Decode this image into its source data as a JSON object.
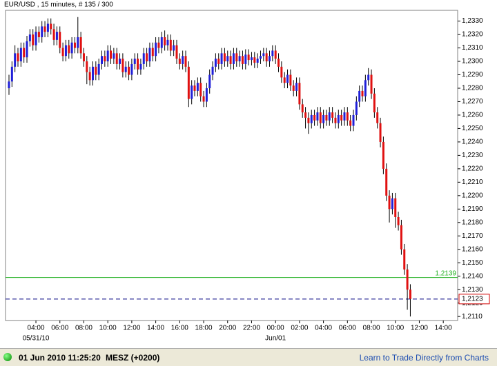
{
  "chart_data": {
    "type": "candlestick",
    "title": "EUR/USD , 15 minutes, # 135 / 300",
    "up_color": "#1f1fd8",
    "down_color": "#e01010",
    "wick_color": "#000000",
    "ylim": [
      1.2107,
      1.2338
    ],
    "xlim": [
      -1.15,
      149.8
    ],
    "yticks": [
      {
        "value": 1.211,
        "label": "1,2110"
      },
      {
        "value": 1.212,
        "label": "1,2120"
      },
      {
        "value": 1.213,
        "label": "1,2130"
      },
      {
        "value": 1.214,
        "label": "1,2140"
      },
      {
        "value": 1.215,
        "label": "1,2150"
      },
      {
        "value": 1.216,
        "label": "1,2160"
      },
      {
        "value": 1.217,
        "label": "1,2170"
      },
      {
        "value": 1.218,
        "label": "1,2180"
      },
      {
        "value": 1.219,
        "label": "1,2190"
      },
      {
        "value": 1.22,
        "label": "1,2200"
      },
      {
        "value": 1.221,
        "label": "1,2210"
      },
      {
        "value": 1.222,
        "label": "1,2220"
      },
      {
        "value": 1.223,
        "label": "1,2230"
      },
      {
        "value": 1.224,
        "label": "1,2240"
      },
      {
        "value": 1.225,
        "label": "1,2250"
      },
      {
        "value": 1.226,
        "label": "1,2260"
      },
      {
        "value": 1.227,
        "label": "1,2270"
      },
      {
        "value": 1.228,
        "label": "1,2280"
      },
      {
        "value": 1.229,
        "label": "1,2290"
      },
      {
        "value": 1.23,
        "label": "1,2300"
      },
      {
        "value": 1.231,
        "label": "1,2310"
      },
      {
        "value": 1.232,
        "label": "1,2320"
      },
      {
        "value": 1.233,
        "label": "1,2330"
      }
    ],
    "xticks": [
      {
        "value": 9,
        "label": "04:00"
      },
      {
        "value": 17,
        "label": "06:00"
      },
      {
        "value": 25,
        "label": "08:00"
      },
      {
        "value": 33,
        "label": "10:00"
      },
      {
        "value": 41,
        "label": "12:00"
      },
      {
        "value": 49,
        "label": "14:00"
      },
      {
        "value": 57,
        "label": "16:00"
      },
      {
        "value": 65,
        "label": "18:00"
      },
      {
        "value": 73,
        "label": "20:00"
      },
      {
        "value": 81,
        "label": "22:00"
      },
      {
        "value": 89,
        "label": "00:00"
      },
      {
        "value": 97,
        "label": "02:00"
      },
      {
        "value": 105,
        "label": "04:00"
      },
      {
        "value": 113,
        "label": "06:00"
      },
      {
        "value": 121,
        "label": "08:00"
      },
      {
        "value": 129,
        "label": "10:00"
      },
      {
        "value": 137,
        "label": "12:00"
      },
      {
        "value": 145,
        "label": "14:00"
      }
    ],
    "date_labels": [
      {
        "value": 9,
        "label": "05/31/10"
      },
      {
        "value": 89,
        "label": "Jun/01"
      }
    ],
    "lines": [
      {
        "value": 1.2139,
        "label": "1,2139",
        "color": "#22b022",
        "style": "solid"
      },
      {
        "value": 1.2123,
        "label": "1,2123",
        "color": "#000080",
        "style": "dashed"
      }
    ],
    "ohlc": [
      [
        1.228,
        1.229,
        1.2275,
        1.2285
      ],
      [
        1.2285,
        1.23,
        1.2281,
        1.2296
      ],
      [
        1.2296,
        1.2312,
        1.2292,
        1.2306
      ],
      [
        1.2306,
        1.231,
        1.2296,
        1.23
      ],
      [
        1.23,
        1.2314,
        1.2296,
        1.231
      ],
      [
        1.231,
        1.2314,
        1.2299,
        1.2303
      ],
      [
        1.2303,
        1.2319,
        1.2299,
        1.2315
      ],
      [
        1.2315,
        1.2324,
        1.2311,
        1.232
      ],
      [
        1.232,
        1.2324,
        1.2308,
        1.2312
      ],
      [
        1.2312,
        1.2326,
        1.2308,
        1.2322
      ],
      [
        1.2322,
        1.2326,
        1.2314,
        1.2318
      ],
      [
        1.2318,
        1.233,
        1.2314,
        1.2326
      ],
      [
        1.2326,
        1.233,
        1.2318,
        1.2322
      ],
      [
        1.2322,
        1.2332,
        1.2318,
        1.2328
      ],
      [
        1.2328,
        1.2332,
        1.232,
        1.2324
      ],
      [
        1.2324,
        1.2328,
        1.2312,
        1.2316
      ],
      [
        1.2316,
        1.2326,
        1.2312,
        1.2322
      ],
      [
        1.2322,
        1.2326,
        1.2306,
        1.231
      ],
      [
        1.231,
        1.2314,
        1.23,
        1.2304
      ],
      [
        1.2304,
        1.2316,
        1.23,
        1.2312
      ],
      [
        1.2312,
        1.2316,
        1.2302,
        1.2306
      ],
      [
        1.2306,
        1.2318,
        1.2302,
        1.2314
      ],
      [
        1.2314,
        1.2318,
        1.2306,
        1.231
      ],
      [
        1.231,
        1.2333,
        1.2306,
        1.2318
      ],
      [
        1.2318,
        1.2322,
        1.2302,
        1.2306
      ],
      [
        1.2306,
        1.231,
        1.2296,
        1.23
      ],
      [
        1.23,
        1.2304,
        1.2283,
        1.2292
      ],
      [
        1.2292,
        1.2296,
        1.2282,
        1.2286
      ],
      [
        1.2286,
        1.23,
        1.2282,
        1.2296
      ],
      [
        1.2296,
        1.23,
        1.2286,
        1.229
      ],
      [
        1.229,
        1.2302,
        1.2286,
        1.2298
      ],
      [
        1.2298,
        1.2308,
        1.2294,
        1.2304
      ],
      [
        1.2304,
        1.2308,
        1.2296,
        1.23
      ],
      [
        1.23,
        1.2312,
        1.2296,
        1.2308
      ],
      [
        1.2308,
        1.2312,
        1.2298,
        1.2302
      ],
      [
        1.2302,
        1.231,
        1.2298,
        1.2306
      ],
      [
        1.2306,
        1.231,
        1.2294,
        1.2298
      ],
      [
        1.2298,
        1.2306,
        1.2294,
        1.2302
      ],
      [
        1.2302,
        1.2306,
        1.2288,
        1.2292
      ],
      [
        1.2292,
        1.23,
        1.2288,
        1.2296
      ],
      [
        1.2296,
        1.23,
        1.2286,
        1.229
      ],
      [
        1.229,
        1.2302,
        1.2286,
        1.2298
      ],
      [
        1.2298,
        1.2306,
        1.2294,
        1.2302
      ],
      [
        1.2302,
        1.2306,
        1.229,
        1.2294
      ],
      [
        1.2294,
        1.2302,
        1.229,
        1.2298
      ],
      [
        1.2298,
        1.231,
        1.2294,
        1.2306
      ],
      [
        1.2306,
        1.231,
        1.2296,
        1.23
      ],
      [
        1.23,
        1.2314,
        1.2296,
        1.231
      ],
      [
        1.231,
        1.2314,
        1.23,
        1.2304
      ],
      [
        1.2304,
        1.2318,
        1.23,
        1.2314
      ],
      [
        1.2314,
        1.2318,
        1.2306,
        1.231
      ],
      [
        1.231,
        1.2322,
        1.2306,
        1.2318
      ],
      [
        1.2318,
        1.2323,
        1.2308,
        1.2312
      ],
      [
        1.2312,
        1.232,
        1.2308,
        1.2316
      ],
      [
        1.2316,
        1.232,
        1.2304,
        1.2308
      ],
      [
        1.2308,
        1.2316,
        1.2304,
        1.2312
      ],
      [
        1.2312,
        1.2316,
        1.2298,
        1.2302
      ],
      [
        1.2302,
        1.2306,
        1.2294,
        1.2298
      ],
      [
        1.2298,
        1.2308,
        1.2294,
        1.2304
      ],
      [
        1.2304,
        1.2308,
        1.2292,
        1.2296
      ],
      [
        1.2296,
        1.23,
        1.2266,
        1.2272
      ],
      [
        1.2272,
        1.2286,
        1.2268,
        1.2282
      ],
      [
        1.2282,
        1.2286,
        1.2274,
        1.2278
      ],
      [
        1.2278,
        1.2288,
        1.2274,
        1.2284
      ],
      [
        1.2284,
        1.2288,
        1.227,
        1.2274
      ],
      [
        1.2274,
        1.2278,
        1.2266,
        1.227
      ],
      [
        1.227,
        1.2284,
        1.2266,
        1.228
      ],
      [
        1.228,
        1.2294,
        1.2276,
        1.229
      ],
      [
        1.229,
        1.23,
        1.2286,
        1.2296
      ],
      [
        1.2296,
        1.2306,
        1.2292,
        1.2302
      ],
      [
        1.2302,
        1.2306,
        1.2294,
        1.2298
      ],
      [
        1.2298,
        1.231,
        1.2294,
        1.2306
      ],
      [
        1.2306,
        1.231,
        1.2296,
        1.23
      ],
      [
        1.23,
        1.2308,
        1.2296,
        1.2304
      ],
      [
        1.2304,
        1.2308,
        1.2294,
        1.2298
      ],
      [
        1.2298,
        1.231,
        1.2294,
        1.2306
      ],
      [
        1.2306,
        1.231,
        1.2296,
        1.23
      ],
      [
        1.23,
        1.2308,
        1.2296,
        1.2304
      ],
      [
        1.2304,
        1.2308,
        1.2294,
        1.2298
      ],
      [
        1.2298,
        1.2309,
        1.2294,
        1.2305
      ],
      [
        1.2305,
        1.2309,
        1.2297,
        1.2301
      ],
      [
        1.2301,
        1.2307,
        1.2297,
        1.2303
      ],
      [
        1.2303,
        1.2307,
        1.2295,
        1.2299
      ],
      [
        1.2299,
        1.2306,
        1.2295,
        1.2302
      ],
      [
        1.2302,
        1.2308,
        1.2298,
        1.2304
      ],
      [
        1.2304,
        1.231,
        1.23,
        1.2306
      ],
      [
        1.2306,
        1.231,
        1.2296,
        1.23
      ],
      [
        1.23,
        1.2308,
        1.2296,
        1.2304
      ],
      [
        1.2304,
        1.2312,
        1.23,
        1.2308
      ],
      [
        1.2308,
        1.2312,
        1.2298,
        1.2302
      ],
      [
        1.2302,
        1.2306,
        1.2292,
        1.2296
      ],
      [
        1.2296,
        1.23,
        1.2284,
        1.2288
      ],
      [
        1.2288,
        1.2292,
        1.228,
        1.2284
      ],
      [
        1.2284,
        1.2294,
        1.228,
        1.229
      ],
      [
        1.229,
        1.2294,
        1.2278,
        1.2282
      ],
      [
        1.2282,
        1.2286,
        1.2274,
        1.2278
      ],
      [
        1.2278,
        1.2288,
        1.2274,
        1.2284
      ],
      [
        1.2284,
        1.2288,
        1.2264,
        1.2268
      ],
      [
        1.2268,
        1.2272,
        1.2258,
        1.2262
      ],
      [
        1.2262,
        1.2266,
        1.225,
        1.2258
      ],
      [
        1.2258,
        1.2262,
        1.2246,
        1.2254
      ],
      [
        1.2254,
        1.2264,
        1.225,
        1.226
      ],
      [
        1.226,
        1.2264,
        1.2252,
        1.2256
      ],
      [
        1.2256,
        1.2266,
        1.2252,
        1.2262
      ],
      [
        1.2262,
        1.2266,
        1.225,
        1.2254
      ],
      [
        1.2254,
        1.2264,
        1.225,
        1.226
      ],
      [
        1.226,
        1.2264,
        1.2252,
        1.2256
      ],
      [
        1.2256,
        1.2266,
        1.2252,
        1.2262
      ],
      [
        1.2262,
        1.2266,
        1.2254,
        1.2258
      ],
      [
        1.2258,
        1.2262,
        1.225,
        1.2254
      ],
      [
        1.2254,
        1.2264,
        1.225,
        1.226
      ],
      [
        1.226,
        1.2264,
        1.2252,
        1.2256
      ],
      [
        1.2256,
        1.2266,
        1.2252,
        1.2262
      ],
      [
        1.2262,
        1.2266,
        1.2252,
        1.2256
      ],
      [
        1.2256,
        1.226,
        1.2248,
        1.2252
      ],
      [
        1.2252,
        1.2264,
        1.2248,
        1.226
      ],
      [
        1.226,
        1.2274,
        1.2256,
        1.227
      ],
      [
        1.227,
        1.2282,
        1.2266,
        1.2278
      ],
      [
        1.2278,
        1.2282,
        1.227,
        1.2274
      ],
      [
        1.2274,
        1.229,
        1.227,
        1.2286
      ],
      [
        1.2286,
        1.2295,
        1.2282,
        1.229
      ],
      [
        1.229,
        1.2294,
        1.2272,
        1.2276
      ],
      [
        1.2276,
        1.228,
        1.2258,
        1.2262
      ],
      [
        1.2262,
        1.2266,
        1.225,
        1.2254
      ],
      [
        1.2254,
        1.2258,
        1.2236,
        1.224
      ],
      [
        1.224,
        1.2244,
        1.2216,
        1.222
      ],
      [
        1.222,
        1.2224,
        1.2196,
        1.22
      ],
      [
        1.22,
        1.2204,
        1.218,
        1.219
      ],
      [
        1.219,
        1.2202,
        1.2186,
        1.2198
      ],
      [
        1.2198,
        1.2202,
        1.2176,
        1.2184
      ],
      [
        1.2184,
        1.2188,
        1.2174,
        1.2178
      ],
      [
        1.2178,
        1.2182,
        1.2156,
        1.216
      ],
      [
        1.216,
        1.2164,
        1.2141,
        1.2145
      ],
      [
        1.2145,
        1.2149,
        1.2115,
        1.213
      ],
      [
        1.213,
        1.2134,
        1.211,
        1.2123
      ]
    ]
  },
  "status_bar": {
    "time": "01 Jun 2010 11:25:20",
    "zone": "MESZ (+0200)",
    "link": "Learn to Trade Directly from Charts"
  }
}
